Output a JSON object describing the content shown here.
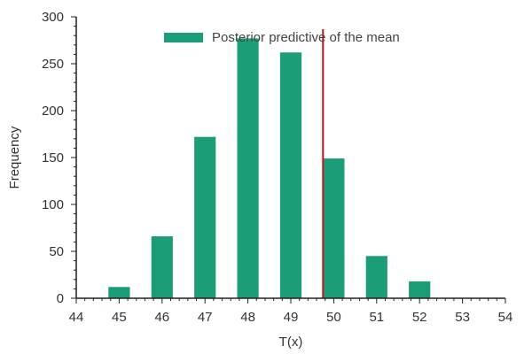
{
  "chart_data": {
    "type": "bar",
    "title": "",
    "xlabel": "T(x)",
    "ylabel": "Frequency",
    "xlim": [
      44,
      54
    ],
    "ylim": [
      0,
      300
    ],
    "xticks": [
      44,
      45,
      46,
      47,
      48,
      49,
      50,
      51,
      52,
      53,
      54
    ],
    "yticks": [
      0,
      50,
      100,
      150,
      200,
      250,
      300
    ],
    "bar_width": 0.5,
    "series": [
      {
        "name": "Posterior predictive of the mean",
        "color": "#1b9e77",
        "x": [
          45,
          46,
          47,
          48,
          49,
          50,
          51,
          52
        ],
        "values": [
          12,
          66,
          172,
          277,
          262,
          149,
          45,
          18
        ]
      }
    ],
    "reference_line": {
      "x": 49.75,
      "color": "#c0151b"
    },
    "legend": {
      "position": "top-center"
    },
    "grid": false
  }
}
